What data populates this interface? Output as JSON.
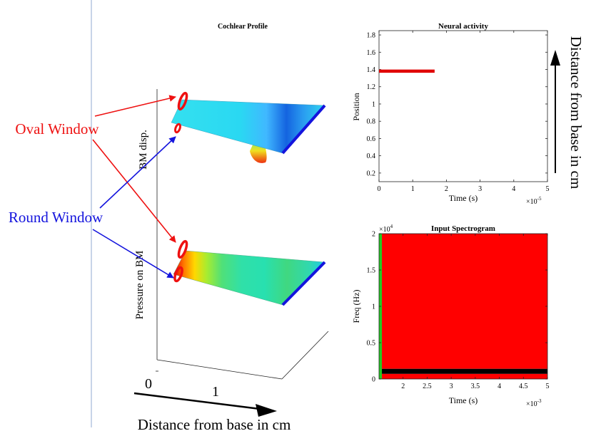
{
  "annotations": {
    "oval_window": "Oval Window",
    "round_window": "Round Window",
    "bottom_axis": "Distance from base in cm",
    "right_axis": "Distance from base in cm",
    "colors": {
      "oval": "#ee1111",
      "round": "#1414dd"
    }
  },
  "chart_data": [
    {
      "id": "cochlear-profile",
      "type": "surface",
      "title": "Cochlear Profile",
      "zlabel_top": "BM disp.",
      "zlabel_bottom": "Pressure on BM",
      "x_ticks": [
        "0",
        "1"
      ],
      "grid": false
    },
    {
      "id": "neural-activity",
      "type": "line",
      "title": "Neural activity",
      "xlabel": "Time (s)",
      "ylabel": "Position",
      "x_exponent": "×10",
      "x_exponent_power": "-5",
      "xlim": [
        0,
        5
      ],
      "ylim": [
        0.1,
        1.85
      ],
      "x_ticks": [
        0,
        1,
        2,
        3,
        4,
        5
      ],
      "y_ticks": [
        0.2,
        0.4,
        0.6,
        0.8,
        1,
        1.2,
        1.4,
        1.6,
        1.8
      ],
      "series": [
        {
          "x": [
            0,
            1.65
          ],
          "y": [
            1.38,
            1.38
          ],
          "color": "#e00000"
        }
      ],
      "grid": false
    },
    {
      "id": "input-spectrogram",
      "type": "heatmap",
      "title": "Input Spectrogram",
      "xlabel": "Time (s)",
      "ylabel": "Freq (Hz)",
      "x_exponent": "×10",
      "x_exponent_power": "-3",
      "y_exponent": "×10",
      "y_exponent_power": "4",
      "xlim": [
        1.5,
        5
      ],
      "ylim": [
        0,
        2
      ],
      "x_ticks": [
        2,
        2.5,
        3,
        3.5,
        4,
        4.5,
        5
      ],
      "y_ticks": [
        0,
        0.5,
        1,
        1.5,
        2
      ],
      "bands": [
        {
          "x0": 1.5,
          "x1": 1.56,
          "y0": 0,
          "y1": 2,
          "color": "#22cc22"
        },
        {
          "x0": 1.56,
          "x1": 5,
          "y0": 0.14,
          "y1": 2,
          "color": "#ff0000"
        },
        {
          "x0": 1.56,
          "x1": 5,
          "y0": 0.07,
          "y1": 0.14,
          "color": "#000000"
        },
        {
          "x0": 1.56,
          "x1": 5,
          "y0": 0,
          "y1": 0.07,
          "color": "#ff0000"
        }
      ],
      "grid": false
    }
  ]
}
